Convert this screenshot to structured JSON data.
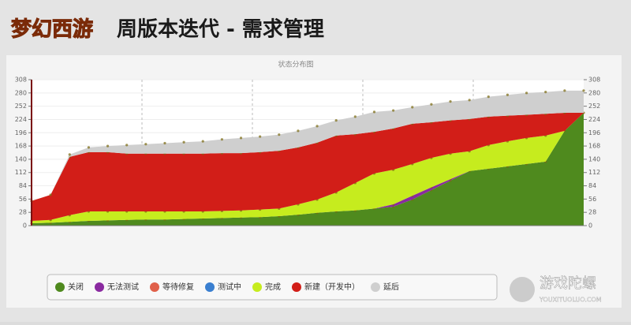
{
  "header": {
    "logo": "梦幻西游",
    "title": "周版本迭代 - 需求管理"
  },
  "chart_data": {
    "type": "area",
    "stacked": true,
    "title": "状态分布图",
    "ylim": [
      0,
      308
    ],
    "yticks": [
      0,
      28,
      56,
      84,
      112,
      140,
      168,
      196,
      224,
      252,
      280,
      308
    ],
    "y2lim": [
      0,
      308
    ],
    "y2ticks": [
      0,
      28,
      56,
      84,
      112,
      140,
      168,
      196,
      224,
      252,
      280,
      308
    ],
    "grid": true,
    "legend": "bottom",
    "series": [
      {
        "name": "关闭",
        "color": "#4f8a1e",
        "values": [
          5,
          6,
          8,
          10,
          11,
          12,
          13,
          13,
          14,
          15,
          16,
          17,
          18,
          20,
          23,
          27,
          30,
          32,
          36,
          40,
          55,
          75,
          95,
          115,
          120,
          125,
          130,
          135,
          200,
          238
        ]
      },
      {
        "name": "无法测试",
        "color": "#8a2aa0",
        "values": [
          0,
          0,
          0,
          0,
          0,
          0,
          0,
          0,
          0,
          0,
          0,
          0,
          0,
          0,
          0,
          0,
          0,
          0,
          0,
          5,
          8,
          6,
          3,
          0,
          0,
          0,
          0,
          0,
          0,
          0
        ]
      },
      {
        "name": "等待修复",
        "color": "#e0604a",
        "values": [
          0,
          0,
          0,
          0,
          0,
          0,
          0,
          0,
          0,
          0,
          0,
          0,
          0,
          0,
          0,
          0,
          0,
          0,
          0,
          0,
          0,
          0,
          0,
          0,
          0,
          0,
          0,
          0,
          0,
          0
        ]
      },
      {
        "name": "测试中",
        "color": "#3a7fd0",
        "values": [
          0,
          0,
          0,
          0,
          0,
          0,
          0,
          0,
          0,
          0,
          0,
          0,
          0,
          0,
          0,
          0,
          0,
          0,
          0,
          0,
          0,
          0,
          0,
          0,
          0,
          0,
          0,
          0,
          0,
          0
        ]
      },
      {
        "name": "完成",
        "color": "#c6ec1e",
        "values": [
          5,
          6,
          14,
          20,
          19,
          18,
          17,
          17,
          16,
          15,
          15,
          15,
          16,
          16,
          22,
          28,
          40,
          58,
          74,
          73,
          67,
          62,
          54,
          42,
          50,
          53,
          55,
          55,
          0,
          0
        ]
      },
      {
        "name": "新建（开发中）",
        "color": "#d21e18",
        "values": [
          42,
          53,
          123,
          125,
          125,
          122,
          122,
          122,
          122,
          122,
          122,
          121,
          121,
          122,
          120,
          120,
          120,
          103,
          88,
          87,
          85,
          75,
          70,
          68,
          60,
          54,
          49,
          46,
          38,
          0
        ]
      },
      {
        "name": "延后",
        "color": "#cfcfcf",
        "values": [
          0,
          0,
          5,
          10,
          13,
          18,
          20,
          22,
          24,
          26,
          29,
          32,
          33,
          34,
          35,
          35,
          32,
          37,
          42,
          38,
          35,
          38,
          40,
          40,
          42,
          44,
          46,
          46,
          47,
          47
        ]
      }
    ]
  },
  "watermark": {
    "name": "游戏陀螺",
    "url": "YOUXITUOLUO.COM"
  }
}
